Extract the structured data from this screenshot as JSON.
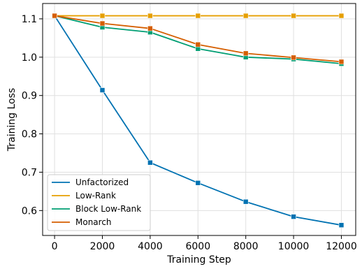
{
  "chart_data": {
    "type": "line",
    "xlabel": "Training Step",
    "ylabel": "Training Loss",
    "x": [
      0,
      2000,
      4000,
      6000,
      8000,
      10000,
      12000
    ],
    "xlim": [
      -500,
      12600
    ],
    "ylim": [
      0.535,
      1.14
    ],
    "xticks": [
      0,
      2000,
      4000,
      6000,
      8000,
      10000,
      12000
    ],
    "yticks": [
      0.6,
      0.7,
      0.8,
      0.9,
      1.0,
      1.1
    ],
    "xtick_labels": [
      "0",
      "2000",
      "4000",
      "6000",
      "8000",
      "10000",
      "12000"
    ],
    "ytick_labels": [
      "0.6",
      "0.7",
      "0.8",
      "0.9",
      "1.0",
      "1.1"
    ],
    "grid": true,
    "legend_position": "lower-left",
    "marker": "square",
    "series": [
      {
        "name": "Unfactorized",
        "color": "#0072b2",
        "values": [
          1.108,
          0.914,
          0.725,
          0.672,
          0.623,
          0.584,
          0.562
        ]
      },
      {
        "name": "Low-Rank",
        "color": "#e69f00",
        "values": [
          1.108,
          1.108,
          1.108,
          1.108,
          1.108,
          1.108,
          1.108
        ]
      },
      {
        "name": "Block Low-Rank",
        "color": "#009e73",
        "values": [
          1.108,
          1.078,
          1.065,
          1.022,
          1.0,
          0.995,
          0.983
        ]
      },
      {
        "name": "Monarch",
        "color": "#d55e00",
        "values": [
          1.108,
          1.088,
          1.075,
          1.033,
          1.01,
          0.999,
          0.988
        ]
      }
    ]
  }
}
